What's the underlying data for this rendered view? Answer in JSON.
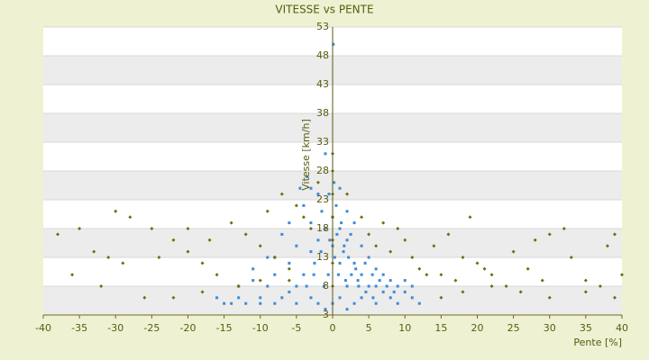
{
  "chart_data": {
    "type": "scatter",
    "title": "VITESSE vs PENTE",
    "x_label": "Pente [%]",
    "y_label": "Vitesse [km/h]",
    "xlim": [
      -40,
      40
    ],
    "xticks": [
      -40,
      -35,
      -30,
      -25,
      -20,
      -15,
      -10,
      -5,
      0,
      5,
      10,
      15,
      20,
      25,
      30,
      35,
      40
    ],
    "ylim": [
      3,
      53
    ],
    "yticks": [
      3,
      8,
      13,
      18,
      23,
      28,
      33,
      38,
      43,
      48,
      53
    ],
    "grid": true,
    "series": [
      {
        "color": "#3b8bd9",
        "x": [
          0,
          1,
          2,
          0.5,
          1.5,
          3,
          2.5,
          1,
          0,
          0.8,
          4,
          5,
          6,
          7,
          3.5,
          2,
          1,
          0,
          -1,
          -2,
          -3,
          -1.5,
          -0.5,
          -2.5,
          -4,
          -5,
          -6,
          -7,
          -3,
          -4,
          -5,
          -6,
          -8,
          -9,
          -10,
          -11,
          -12,
          -13,
          -14,
          -15,
          -16,
          -7,
          -8,
          -4.5,
          -3.5,
          -2,
          1,
          0.2,
          2,
          3,
          4,
          5,
          6,
          7,
          8,
          9,
          10,
          11,
          12,
          9,
          8,
          6,
          4,
          3,
          2,
          -1,
          -2,
          -3,
          -5,
          -8,
          -10,
          1.2,
          2.2,
          3.2,
          1.8,
          0.3,
          -0.6,
          -1.2,
          5.5,
          4.5,
          6.5,
          7.5,
          8.5,
          10,
          11,
          0.1,
          -1,
          -3,
          -6,
          -9,
          -11,
          -13,
          0.6,
          1.6,
          2.6,
          3.6,
          4.6,
          5.6,
          -0.4,
          -1.6,
          -2.6,
          -3.6
        ],
        "values": [
          20,
          18,
          16,
          22,
          14,
          12,
          17,
          12,
          15,
          10,
          10,
          8,
          8,
          7,
          9,
          8,
          6,
          5,
          18,
          16,
          14,
          21,
          24,
          12,
          10,
          8,
          7,
          6,
          19,
          22,
          15,
          12,
          10,
          8,
          6,
          9,
          5,
          6,
          5,
          5,
          6,
          17,
          13,
          25,
          27,
          24,
          25,
          26,
          21,
          19,
          15,
          13,
          11,
          10,
          9,
          8,
          7,
          6,
          5,
          5,
          6,
          5,
          6,
          5,
          4,
          4,
          5,
          6,
          5,
          5,
          5,
          19,
          13,
          11,
          9,
          13,
          10,
          8,
          10,
          12,
          9,
          8,
          7,
          9,
          8,
          50,
          31,
          25,
          19,
          13,
          11,
          8,
          17,
          15,
          10,
          8,
          7,
          6,
          16,
          14,
          10,
          8
        ]
      },
      {
        "color": "#6e6e0a",
        "x": [
          -38,
          -35,
          -33,
          -31,
          -30,
          -28,
          -25,
          -22,
          -20,
          -18,
          -16,
          -14,
          -12,
          -10,
          -8,
          -6,
          -4,
          -9,
          -7,
          -5,
          -3,
          -2,
          0,
          0,
          0,
          0,
          0,
          0,
          0,
          2,
          4,
          5,
          6,
          8,
          7,
          9,
          10,
          11,
          12,
          13,
          14,
          16,
          18,
          19,
          20,
          22,
          24,
          25,
          27,
          29,
          30,
          32,
          33,
          35,
          37,
          38,
          39,
          40,
          -36,
          -32,
          -26,
          -22,
          -18,
          -13,
          -10,
          -6,
          15,
          18,
          22,
          26,
          30,
          35,
          39,
          -29,
          -24,
          -20,
          -17,
          15,
          17,
          21,
          28
        ],
        "values": [
          17,
          18,
          14,
          13,
          21,
          20,
          18,
          16,
          14,
          12,
          10,
          19,
          17,
          15,
          13,
          11,
          20,
          21,
          24,
          22,
          18,
          26,
          28,
          24,
          20,
          31,
          16,
          12,
          8,
          24,
          20,
          17,
          15,
          14,
          19,
          18,
          16,
          13,
          11,
          10,
          15,
          17,
          13,
          20,
          12,
          10,
          8,
          14,
          11,
          9,
          17,
          18,
          13,
          9,
          8,
          15,
          17,
          10,
          10,
          8,
          6,
          6,
          7,
          8,
          9,
          9,
          6,
          7,
          8,
          7,
          6,
          7,
          6,
          12,
          13,
          18,
          16,
          10,
          9,
          11,
          16
        ]
      }
    ]
  }
}
